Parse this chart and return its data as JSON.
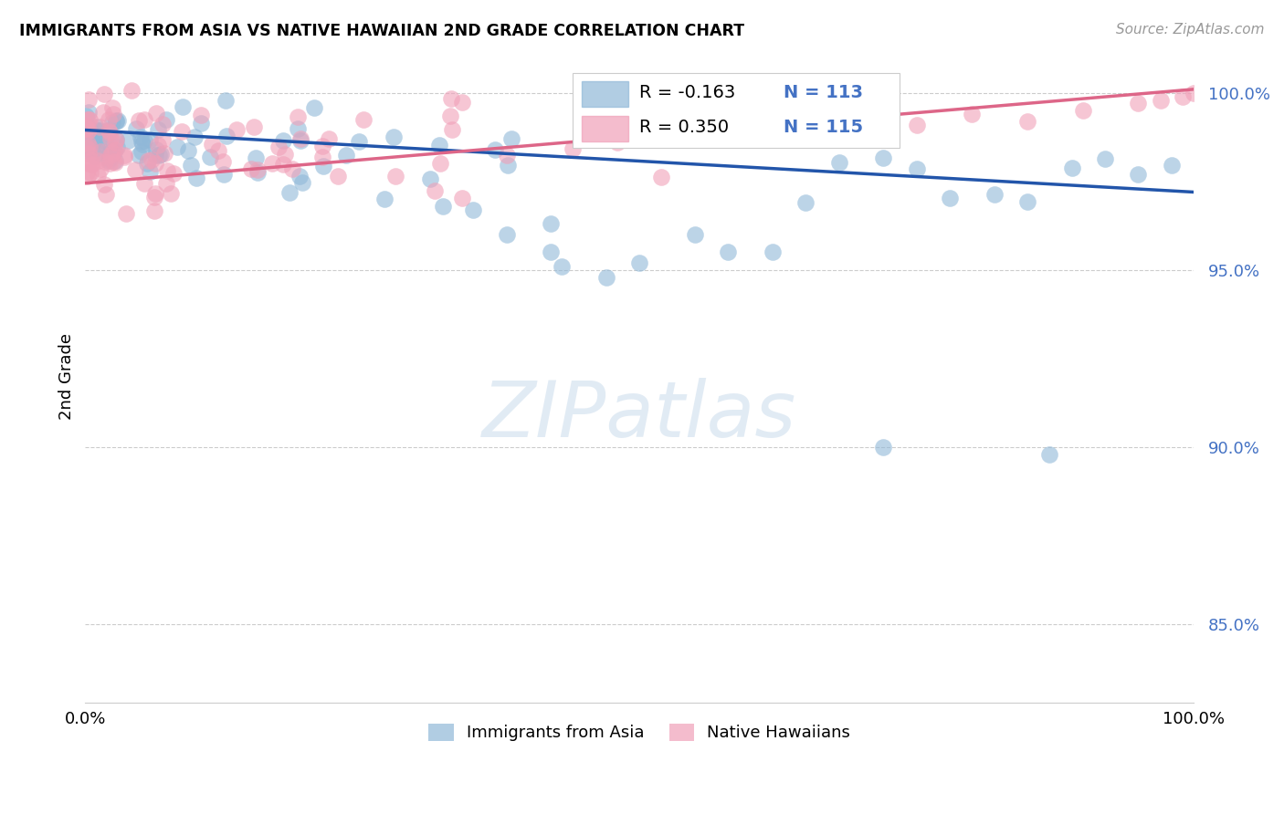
{
  "title": "IMMIGRANTS FROM ASIA VS NATIVE HAWAIIAN 2ND GRADE CORRELATION CHART",
  "source": "Source: ZipAtlas.com",
  "ylabel": "2nd Grade",
  "xlim": [
    0.0,
    1.0
  ],
  "ylim": [
    0.828,
    1.012
  ],
  "yticks": [
    0.85,
    0.9,
    0.95,
    1.0
  ],
  "ytick_labels": [
    "85.0%",
    "90.0%",
    "95.0%",
    "100.0%"
  ],
  "r_blue": "-0.163",
  "n_blue": "113",
  "r_pink": "0.350",
  "n_pink": "115",
  "blue_color": "#90b8d8",
  "pink_color": "#f0a0b8",
  "line_blue_color": "#2255aa",
  "line_pink_color": "#dd6688",
  "blue_line_x0": 0.0,
  "blue_line_x1": 1.0,
  "blue_line_y0": 0.9895,
  "blue_line_y1": 0.972,
  "pink_line_x0": 0.0,
  "pink_line_x1": 1.0,
  "pink_line_y0": 0.9745,
  "pink_line_y1": 1.001,
  "watermark": "ZIPatlas",
  "tick_color": "#4472c4",
  "grid_color": "#cccccc",
  "bg_color": "#ffffff"
}
